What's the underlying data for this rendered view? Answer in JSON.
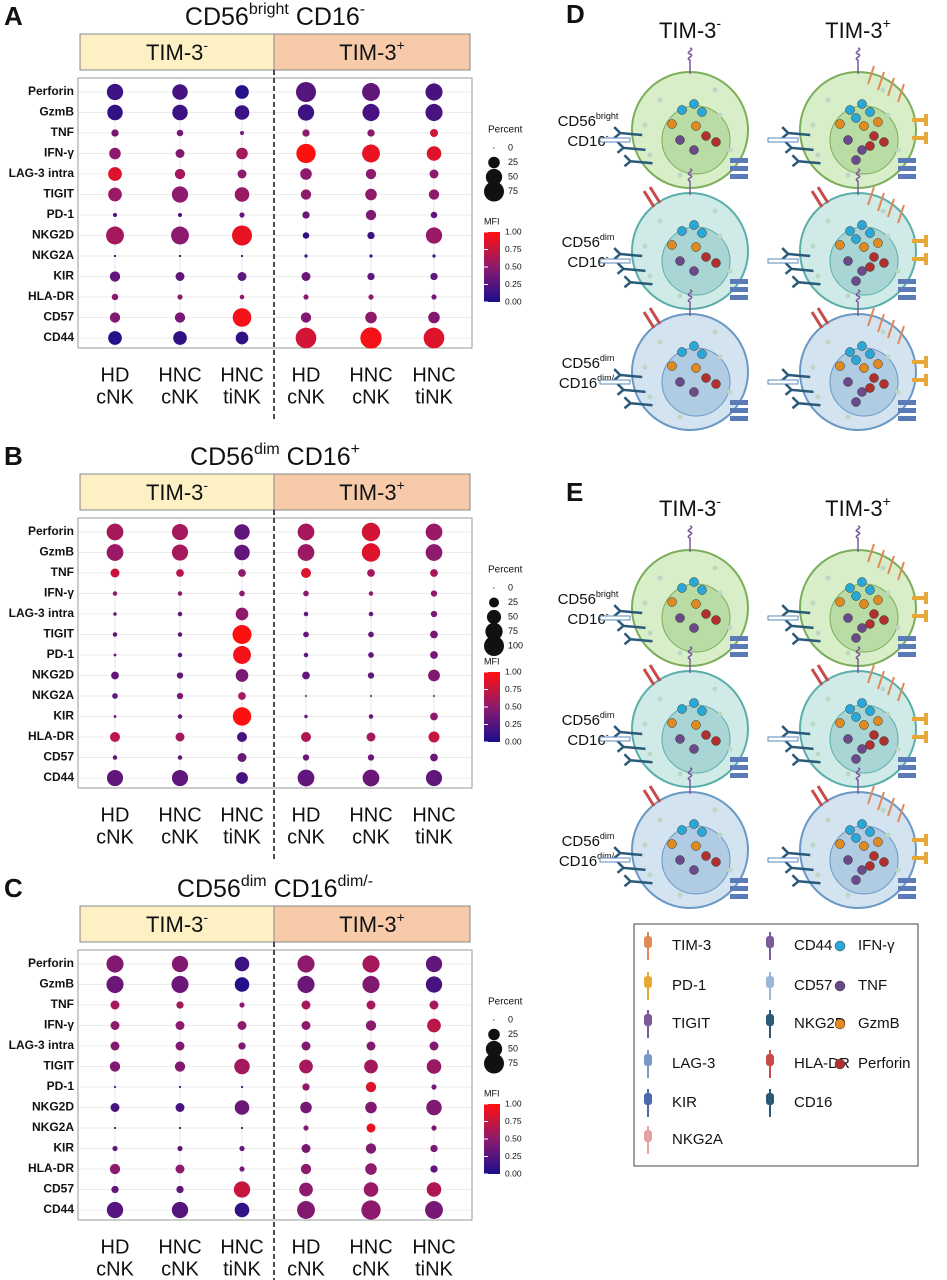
{
  "chart_data": [
    {
      "type": "dot",
      "panel": "A",
      "title": [
        "CD56",
        "bright",
        " CD16",
        "-"
      ],
      "groups": [
        [
          "TIM-3",
          "-"
        ],
        [
          "TIM-3",
          "+"
        ]
      ],
      "categories": [
        "Perforin",
        "GzmB",
        "TNF",
        "IFN-γ",
        "LAG-3 intra",
        "TIGIT",
        "PD-1",
        "NKG2D",
        "NKG2A",
        "KIR",
        "HLA-DR",
        "CD57",
        "CD44"
      ],
      "series": [
        {
          "name": [
            "HD",
            "cNK"
          ],
          "color": "#1a1aaa",
          "size": [
            50,
            45,
            10,
            25,
            35,
            35,
            3,
            60,
            1,
            20,
            8,
            20,
            35
          ],
          "mfi": [
            0.15,
            0.1,
            0.4,
            0.5,
            0.85,
            0.55,
            0.2,
            0.6,
            0.2,
            0.3,
            0.5,
            0.45,
            0.05
          ]
        },
        {
          "name": [
            "HNC",
            "cNK"
          ],
          "color": "#e07a1a",
          "size": [
            45,
            45,
            8,
            15,
            20,
            50,
            3,
            60,
            1,
            15,
            5,
            20,
            35
          ],
          "mfi": [
            0.2,
            0.15,
            0.4,
            0.45,
            0.6,
            0.5,
            0.2,
            0.5,
            0.2,
            0.3,
            0.5,
            0.4,
            0.1
          ]
        },
        {
          "name": [
            "HNC",
            "tiNK"
          ],
          "color": "#1a8a1a",
          "size": [
            35,
            40,
            3,
            25,
            15,
            40,
            5,
            75,
            1,
            15,
            4,
            65,
            30
          ],
          "mfi": [
            0.05,
            0.15,
            0.4,
            0.6,
            0.5,
            0.55,
            0.3,
            0.9,
            0.2,
            0.3,
            0.5,
            0.95,
            0.1
          ]
        },
        {
          "name": [
            "HD",
            "cNK"
          ],
          "color": "#1a1aaa",
          "size": [
            75,
            50,
            10,
            70,
            25,
            20,
            10,
            8,
            2,
            15,
            5,
            20,
            80
          ],
          "mfi": [
            0.25,
            0.15,
            0.5,
            1.0,
            0.5,
            0.5,
            0.35,
            0.1,
            0.2,
            0.35,
            0.5,
            0.45,
            0.8
          ]
        },
        {
          "name": [
            "HNC",
            "cNK"
          ],
          "color": "#e07a1a",
          "size": [
            60,
            55,
            10,
            60,
            20,
            25,
            20,
            10,
            2,
            10,
            5,
            25,
            85
          ],
          "mfi": [
            0.3,
            0.2,
            0.5,
            0.9,
            0.5,
            0.5,
            0.45,
            0.15,
            0.2,
            0.3,
            0.5,
            0.5,
            0.95
          ]
        },
        {
          "name": [
            "HNC",
            "tiNK"
          ],
          "color": "#1a8a1a",
          "size": [
            55,
            55,
            12,
            40,
            15,
            20,
            8,
            50,
            2,
            10,
            5,
            25,
            80
          ],
          "mfi": [
            0.2,
            0.2,
            0.8,
            0.85,
            0.5,
            0.5,
            0.3,
            0.55,
            0.2,
            0.3,
            0.4,
            0.45,
            0.85
          ]
        }
      ],
      "size_label": "Percent",
      "size_lim": [
        0,
        75
      ],
      "size_ticks": [
        0,
        25,
        50,
        75
      ],
      "color_label": "MFI",
      "color_lim": [
        0,
        1
      ],
      "colors": [
        "#1a0f8c",
        "#8e1a6e",
        "#ff1010"
      ],
      "color_ticks": [
        {
          "value": 0,
          "label": "0.00"
        },
        {
          "value": 0.25,
          "label": "0.25"
        },
        {
          "value": 0.5,
          "label": "0.50"
        },
        {
          "value": 0.75,
          "label": "0.75"
        },
        {
          "value": 1,
          "label": "1.00"
        }
      ]
    },
    {
      "type": "dot",
      "panel": "B",
      "title": [
        "CD56",
        "dim",
        " CD16",
        "+"
      ],
      "groups": [
        [
          "TIM-3",
          "-"
        ],
        [
          "TIM-3",
          "+"
        ]
      ],
      "categories": [
        "Perforin",
        "GzmB",
        "TNF",
        "IFN-γ",
        "LAG-3 intra",
        "TIGIT",
        "PD-1",
        "NKG2D",
        "NKG2A",
        "KIR",
        "HLA-DR",
        "CD57",
        "CD44"
      ],
      "series": [
        {
          "name": [
            "HD",
            "cNK"
          ],
          "color": "#1a1aaa",
          "size": [
            70,
            70,
            20,
            5,
            3,
            5,
            2,
            15,
            8,
            2,
            25,
            5,
            65
          ],
          "mfi": [
            0.6,
            0.55,
            0.75,
            0.5,
            0.3,
            0.3,
            0.3,
            0.3,
            0.3,
            0.3,
            0.7,
            0.3,
            0.3
          ]
        },
        {
          "name": [
            "HNC",
            "cNK"
          ],
          "color": "#e07a1a",
          "size": [
            65,
            65,
            15,
            5,
            5,
            5,
            5,
            10,
            10,
            5,
            20,
            5,
            65
          ],
          "mfi": [
            0.6,
            0.6,
            0.7,
            0.5,
            0.3,
            0.3,
            0.3,
            0.3,
            0.4,
            0.3,
            0.6,
            0.3,
            0.3
          ]
        },
        {
          "name": [
            "HNC",
            "tiNK"
          ],
          "color": "#1a8a1a",
          "size": [
            60,
            60,
            15,
            8,
            40,
            90,
            80,
            40,
            15,
            85,
            25,
            20,
            35
          ],
          "mfi": [
            0.3,
            0.3,
            0.5,
            0.5,
            0.5,
            1.0,
            0.95,
            0.4,
            0.6,
            1.0,
            0.2,
            0.35,
            0.2
          ]
        },
        {
          "name": [
            "HD",
            "cNK"
          ],
          "color": "#1a1aaa",
          "size": [
            70,
            70,
            25,
            8,
            5,
            8,
            5,
            15,
            1,
            3,
            25,
            10,
            70
          ],
          "mfi": [
            0.6,
            0.55,
            0.85,
            0.5,
            0.3,
            0.3,
            0.3,
            0.3,
            0.3,
            0.3,
            0.65,
            0.35,
            0.3
          ]
        },
        {
          "name": [
            "HNC",
            "cNK"
          ],
          "color": "#e07a1a",
          "size": [
            85,
            85,
            15,
            5,
            5,
            8,
            8,
            10,
            1,
            5,
            20,
            10,
            70
          ],
          "mfi": [
            0.8,
            0.85,
            0.6,
            0.5,
            0.3,
            0.3,
            0.3,
            0.3,
            0.3,
            0.3,
            0.6,
            0.35,
            0.35
          ]
        },
        {
          "name": [
            "HNC",
            "tiNK"
          ],
          "color": "#1a8a1a",
          "size": [
            70,
            70,
            15,
            10,
            10,
            15,
            15,
            35,
            1,
            15,
            30,
            15,
            65
          ],
          "mfi": [
            0.55,
            0.5,
            0.6,
            0.5,
            0.4,
            0.4,
            0.4,
            0.45,
            0.3,
            0.5,
            0.75,
            0.35,
            0.3
          ]
        }
      ],
      "size_label": "Percent",
      "size_lim": [
        0,
        100
      ],
      "size_ticks": [
        0,
        25,
        50,
        75,
        100
      ],
      "color_label": "MFI",
      "color_lim": [
        0,
        1
      ],
      "colors": [
        "#1a0f8c",
        "#8e1a6e",
        "#ff1010"
      ],
      "color_ticks": [
        {
          "value": 0,
          "label": "0.00"
        },
        {
          "value": 0.25,
          "label": "0.25"
        },
        {
          "value": 0.5,
          "label": "0.50"
        },
        {
          "value": 0.75,
          "label": "0.75"
        },
        {
          "value": 1,
          "label": "1.00"
        }
      ]
    },
    {
      "type": "dot",
      "panel": "C",
      "title": [
        "CD56",
        "dim",
        " CD16",
        "dim/-"
      ],
      "groups": [
        [
          "TIM-3",
          "-"
        ],
        [
          "TIM-3",
          "+"
        ]
      ],
      "categories": [
        "Perforin",
        "GzmB",
        "TNF",
        "IFN-γ",
        "LAG-3 intra",
        "TIGIT",
        "PD-1",
        "NKG2D",
        "NKG2A",
        "KIR",
        "HLA-DR",
        "CD57",
        "CD44"
      ],
      "series": [
        {
          "name": [
            "HD",
            "cNK"
          ],
          "color": "#1a1aaa",
          "size": [
            55,
            55,
            15,
            15,
            15,
            20,
            1,
            15,
            1,
            5,
            20,
            10,
            50
          ],
          "mfi": [
            0.45,
            0.35,
            0.6,
            0.5,
            0.45,
            0.45,
            0.3,
            0.2,
            0.3,
            0.3,
            0.5,
            0.3,
            0.25
          ]
        },
        {
          "name": [
            "HNC",
            "cNK"
          ],
          "color": "#e07a1a",
          "size": [
            50,
            55,
            10,
            15,
            15,
            20,
            1,
            15,
            1,
            5,
            15,
            10,
            50
          ],
          "mfi": [
            0.45,
            0.35,
            0.6,
            0.5,
            0.45,
            0.45,
            0.3,
            0.2,
            0.3,
            0.3,
            0.5,
            0.3,
            0.25
          ]
        },
        {
          "name": [
            "HNC",
            "tiNK"
          ],
          "color": "#1a8a1a",
          "size": [
            40,
            40,
            5,
            15,
            10,
            45,
            1,
            40,
            1,
            5,
            5,
            50,
            40
          ],
          "mfi": [
            0.15,
            0.05,
            0.5,
            0.5,
            0.45,
            0.6,
            0.3,
            0.35,
            0.3,
            0.3,
            0.4,
            0.75,
            0.1
          ]
        },
        {
          "name": [
            "HD",
            "cNK"
          ],
          "color": "#1a1aaa",
          "size": [
            55,
            55,
            15,
            15,
            15,
            35,
            10,
            25,
            5,
            15,
            20,
            35,
            60
          ],
          "mfi": [
            0.5,
            0.35,
            0.6,
            0.5,
            0.45,
            0.6,
            0.5,
            0.4,
            0.45,
            0.4,
            0.5,
            0.5,
            0.45
          ]
        },
        {
          "name": [
            "HNC",
            "cNK"
          ],
          "color": "#e07a1a",
          "size": [
            55,
            55,
            15,
            20,
            15,
            35,
            20,
            25,
            15,
            20,
            25,
            40,
            70
          ],
          "mfi": [
            0.6,
            0.45,
            0.6,
            0.5,
            0.45,
            0.6,
            0.85,
            0.45,
            0.9,
            0.45,
            0.5,
            0.55,
            0.5
          ]
        },
        {
          "name": [
            "HNC",
            "tiNK"
          ],
          "color": "#1a8a1a",
          "size": [
            50,
            50,
            15,
            35,
            15,
            40,
            5,
            45,
            5,
            10,
            10,
            40,
            60
          ],
          "mfi": [
            0.3,
            0.2,
            0.6,
            0.7,
            0.45,
            0.55,
            0.4,
            0.45,
            0.4,
            0.4,
            0.3,
            0.65,
            0.4
          ]
        }
      ],
      "size_label": "Percent",
      "size_lim": [
        0,
        75
      ],
      "size_ticks": [
        0,
        25,
        50,
        75
      ],
      "color_label": "MFI",
      "color_lim": [
        0,
        1
      ],
      "colors": [
        "#1a0f8c",
        "#8e1a6e",
        "#ff1010"
      ],
      "color_ticks": [
        {
          "value": 0,
          "label": "0.00"
        },
        {
          "value": 0.25,
          "label": "0.25"
        },
        {
          "value": 0.5,
          "label": "0.50"
        },
        {
          "value": 0.75,
          "label": "0.75"
        },
        {
          "value": 1,
          "label": "1.00"
        }
      ]
    }
  ],
  "diagrams": [
    {
      "panel": "D",
      "columns": [
        [
          "TIM-3",
          "-"
        ],
        [
          "TIM-3",
          "+"
        ]
      ],
      "rows": [
        [
          [
            "CD56",
            "bright"
          ],
          [
            "CD16",
            "-"
          ]
        ],
        [
          [
            "CD56",
            "dim"
          ],
          [
            "CD16",
            "-"
          ]
        ],
        [
          [
            "CD56",
            "dim"
          ],
          [
            "CD16",
            "dim/-"
          ]
        ]
      ]
    },
    {
      "panel": "E",
      "columns": [
        [
          "TIM-3",
          "-"
        ],
        [
          "TIM-3",
          "+"
        ]
      ],
      "rows": [
        [
          [
            "CD56",
            "bright"
          ],
          [
            "CD16",
            "-"
          ]
        ],
        [
          [
            "CD56",
            "dim"
          ],
          [
            "CD16",
            "-"
          ]
        ],
        [
          [
            "CD56",
            "dim"
          ],
          [
            "CD16",
            "dim/-"
          ]
        ]
      ]
    }
  ],
  "legend": [
    "TIM-3",
    "PD-1",
    "TIGIT",
    "LAG-3",
    "KIR",
    "NKG2A",
    "CD44",
    "CD57",
    "NKG2D",
    "HLA-DR",
    "CD16",
    "IFN-γ",
    "TNF",
    "GzmB",
    "Perforin"
  ]
}
